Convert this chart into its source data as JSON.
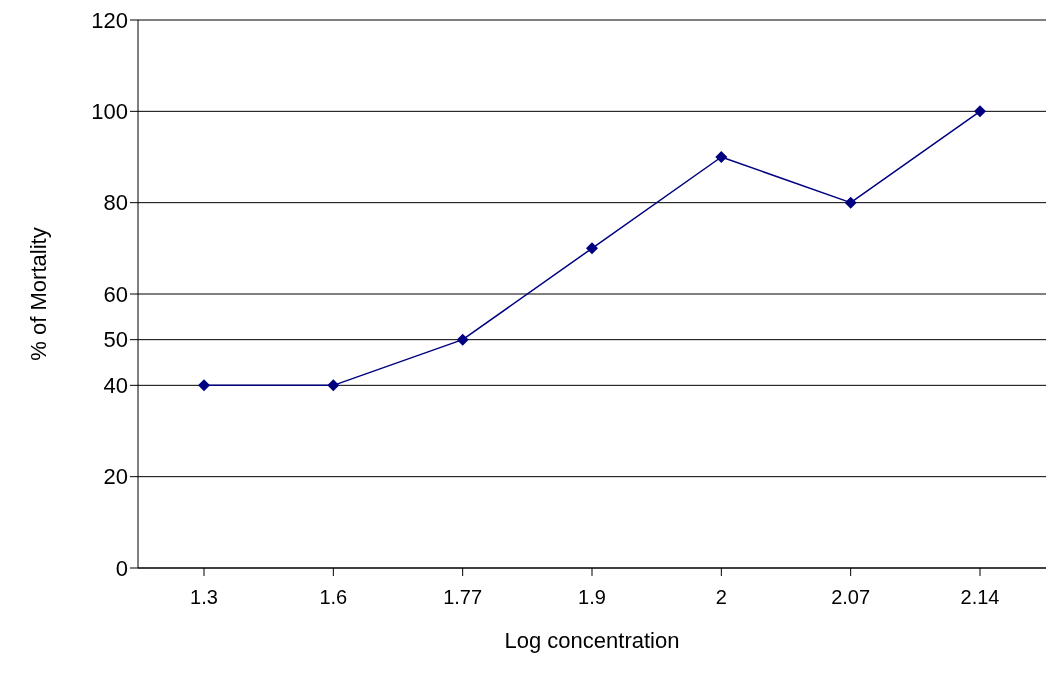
{
  "chart_data": {
    "type": "line",
    "xlabel": "Log concentration",
    "ylabel": "% of Mortality",
    "categories": [
      "1.3",
      "1.6",
      "1.77",
      "1.9",
      "2",
      "2.07",
      "2.14"
    ],
    "series": [
      {
        "color": "#000080",
        "values": [
          40,
          40,
          50,
          70,
          90,
          80,
          100
        ]
      }
    ],
    "ylim": [
      0,
      120
    ],
    "yticks": [
      0,
      20,
      40,
      50,
      60,
      80,
      100,
      120
    ],
    "grid": "y",
    "marker": "diamond",
    "line_style": "solid"
  }
}
